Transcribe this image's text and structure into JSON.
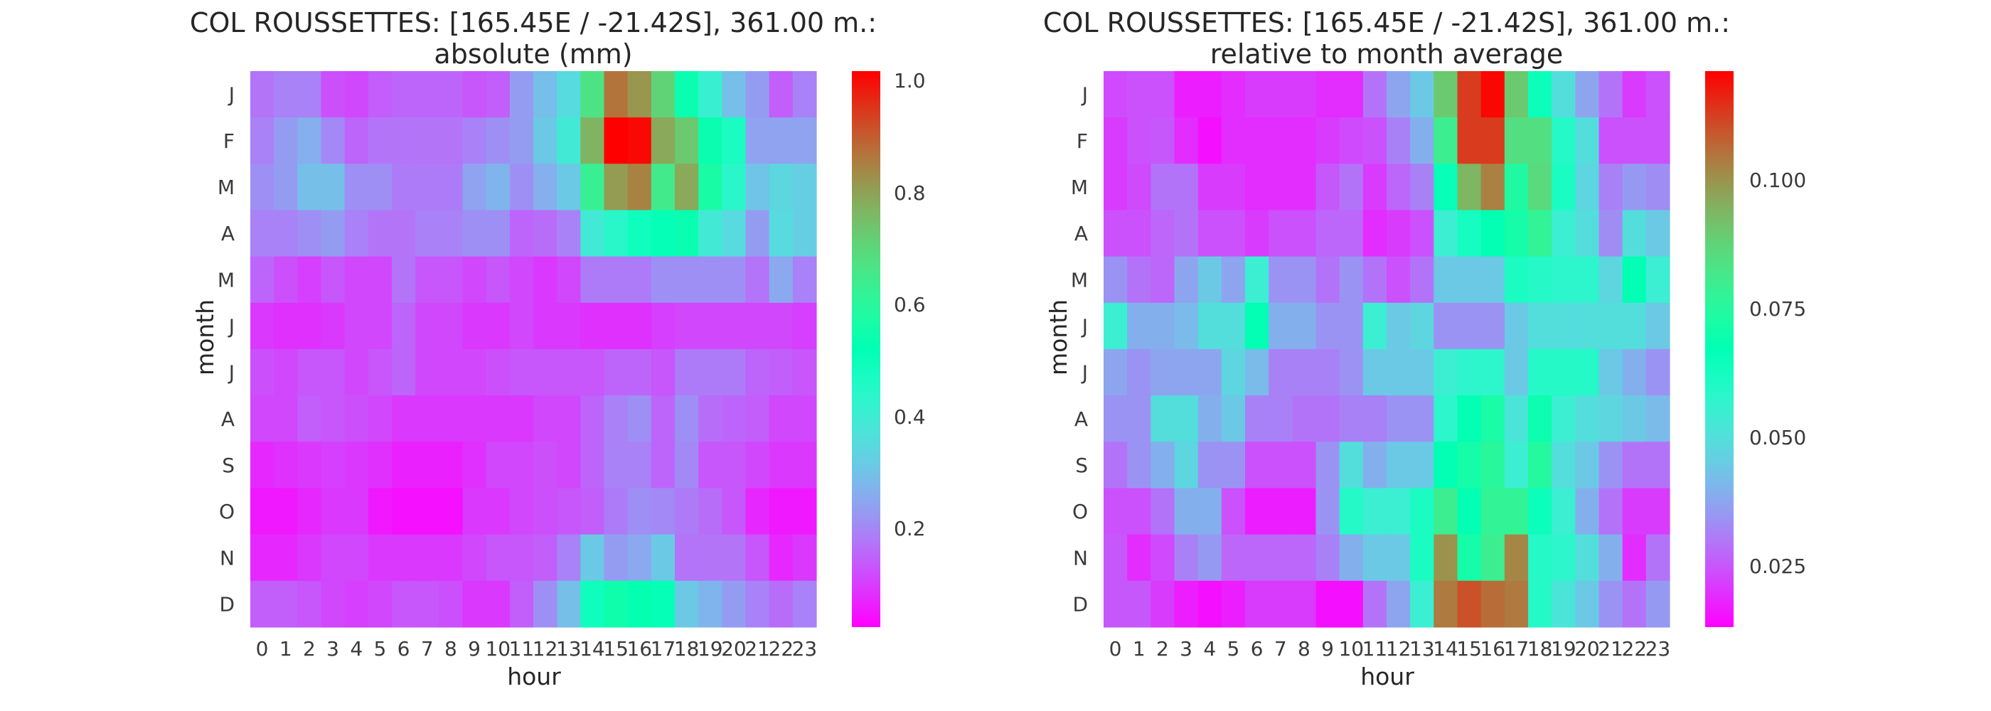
{
  "panels": [
    {
      "title_line1": "COL ROUSSETTES: [165.45E / -21.42S], 361.00 m.:",
      "title_line2": "absolute (mm)",
      "xlabel": "hour",
      "ylabel": "month",
      "colorbar_ticks": [
        "0.2",
        "0.4",
        "0.6",
        "0.8",
        "1.0"
      ]
    },
    {
      "title_line1": "COL ROUSSETTES: [165.45E / -21.42S], 361.00 m.:",
      "title_line2": "relative to month average",
      "xlabel": "hour",
      "ylabel": "month",
      "colorbar_ticks": [
        "0.025",
        "0.050",
        "0.075",
        "0.100"
      ]
    }
  ],
  "chart_data": [
    {
      "type": "heatmap",
      "title": "COL ROUSSETTES: [165.45E / -21.42S], 361.00 m.: absolute (mm)",
      "xlabel": "hour",
      "ylabel": "month",
      "x": [
        "0",
        "1",
        "2",
        "3",
        "4",
        "5",
        "6",
        "7",
        "8",
        "9",
        "10",
        "11",
        "12",
        "13",
        "14",
        "15",
        "16",
        "17",
        "18",
        "19",
        "20",
        "21",
        "22",
        "23"
      ],
      "y": [
        "J",
        "F",
        "M",
        "A",
        "M",
        "J",
        "J",
        "A",
        "S",
        "O",
        "N",
        "D"
      ],
      "colormap": "rainbow",
      "vmin": 0.03,
      "vmax": 1.03,
      "colorbar_ticks": [
        0.2,
        0.4,
        0.6,
        0.8,
        1.0
      ],
      "values": [
        [
          0.18,
          0.2,
          0.2,
          0.13,
          0.12,
          0.15,
          0.16,
          0.16,
          0.16,
          0.14,
          0.15,
          0.24,
          0.3,
          0.36,
          0.68,
          0.88,
          0.83,
          0.72,
          0.55,
          0.42,
          0.3,
          0.24,
          0.15,
          0.2
        ],
        [
          0.2,
          0.24,
          0.27,
          0.21,
          0.16,
          0.18,
          0.18,
          0.18,
          0.18,
          0.2,
          0.22,
          0.24,
          0.32,
          0.4,
          0.78,
          1.03,
          1.02,
          0.8,
          0.74,
          0.55,
          0.48,
          0.25,
          0.25,
          0.25
        ],
        [
          0.22,
          0.24,
          0.3,
          0.3,
          0.22,
          0.22,
          0.19,
          0.19,
          0.19,
          0.25,
          0.28,
          0.22,
          0.27,
          0.32,
          0.64,
          0.82,
          0.86,
          0.66,
          0.8,
          0.58,
          0.45,
          0.31,
          0.35,
          0.33
        ],
        [
          0.2,
          0.2,
          0.22,
          0.24,
          0.2,
          0.18,
          0.18,
          0.2,
          0.2,
          0.22,
          0.22,
          0.16,
          0.17,
          0.2,
          0.4,
          0.45,
          0.5,
          0.52,
          0.55,
          0.4,
          0.36,
          0.24,
          0.36,
          0.33
        ],
        [
          0.16,
          0.13,
          0.11,
          0.14,
          0.12,
          0.12,
          0.18,
          0.14,
          0.14,
          0.12,
          0.14,
          0.12,
          0.1,
          0.12,
          0.19,
          0.19,
          0.19,
          0.22,
          0.22,
          0.22,
          0.22,
          0.18,
          0.26,
          0.2
        ],
        [
          0.1,
          0.09,
          0.09,
          0.1,
          0.12,
          0.12,
          0.16,
          0.12,
          0.12,
          0.1,
          0.1,
          0.12,
          0.1,
          0.1,
          0.09,
          0.09,
          0.09,
          0.11,
          0.12,
          0.12,
          0.12,
          0.12,
          0.12,
          0.11
        ],
        [
          0.13,
          0.12,
          0.14,
          0.14,
          0.12,
          0.14,
          0.16,
          0.12,
          0.12,
          0.12,
          0.13,
          0.14,
          0.14,
          0.14,
          0.14,
          0.16,
          0.16,
          0.14,
          0.19,
          0.19,
          0.19,
          0.16,
          0.15,
          0.14
        ],
        [
          0.12,
          0.12,
          0.15,
          0.14,
          0.13,
          0.12,
          0.1,
          0.1,
          0.1,
          0.1,
          0.1,
          0.1,
          0.12,
          0.12,
          0.16,
          0.2,
          0.22,
          0.16,
          0.22,
          0.17,
          0.16,
          0.15,
          0.12,
          0.12
        ],
        [
          0.08,
          0.09,
          0.1,
          0.11,
          0.1,
          0.09,
          0.07,
          0.07,
          0.07,
          0.09,
          0.12,
          0.12,
          0.13,
          0.12,
          0.16,
          0.2,
          0.2,
          0.16,
          0.21,
          0.14,
          0.14,
          0.12,
          0.1,
          0.1
        ],
        [
          0.06,
          0.06,
          0.08,
          0.1,
          0.1,
          0.06,
          0.05,
          0.05,
          0.05,
          0.1,
          0.1,
          0.12,
          0.13,
          0.14,
          0.15,
          0.19,
          0.22,
          0.21,
          0.19,
          0.17,
          0.14,
          0.08,
          0.06,
          0.06
        ],
        [
          0.08,
          0.08,
          0.1,
          0.12,
          0.12,
          0.1,
          0.1,
          0.1,
          0.1,
          0.12,
          0.14,
          0.14,
          0.15,
          0.2,
          0.32,
          0.24,
          0.26,
          0.32,
          0.18,
          0.18,
          0.18,
          0.14,
          0.08,
          0.1
        ],
        [
          0.15,
          0.15,
          0.14,
          0.12,
          0.11,
          0.12,
          0.14,
          0.14,
          0.13,
          0.1,
          0.1,
          0.15,
          0.22,
          0.3,
          0.5,
          0.56,
          0.54,
          0.52,
          0.32,
          0.28,
          0.24,
          0.2,
          0.17,
          0.2
        ]
      ]
    },
    {
      "type": "heatmap",
      "title": "COL ROUSSETTES: [165.45E / -21.42S], 361.00 m.: relative to month average",
      "xlabel": "hour",
      "ylabel": "month",
      "x": [
        "0",
        "1",
        "2",
        "3",
        "4",
        "5",
        "6",
        "7",
        "8",
        "9",
        "10",
        "11",
        "12",
        "13",
        "14",
        "15",
        "16",
        "17",
        "18",
        "19",
        "20",
        "21",
        "22",
        "23"
      ],
      "y": [
        "J",
        "F",
        "M",
        "A",
        "M",
        "J",
        "J",
        "A",
        "S",
        "O",
        "N",
        "D"
      ],
      "colormap": "rainbow",
      "vmin": 0.014,
      "vmax": 0.121,
      "colorbar_ticks": [
        0.025,
        0.05,
        0.075,
        0.1
      ],
      "values": [
        [
          0.024,
          0.025,
          0.025,
          0.018,
          0.018,
          0.02,
          0.022,
          0.022,
          0.022,
          0.02,
          0.02,
          0.03,
          0.038,
          0.045,
          0.09,
          0.113,
          0.12,
          0.09,
          0.065,
          0.05,
          0.038,
          0.03,
          0.022,
          0.025
        ],
        [
          0.022,
          0.025,
          0.026,
          0.02,
          0.016,
          0.02,
          0.02,
          0.02,
          0.02,
          0.022,
          0.024,
          0.025,
          0.032,
          0.04,
          0.08,
          0.113,
          0.113,
          0.085,
          0.085,
          0.06,
          0.05,
          0.025,
          0.025,
          0.025
        ],
        [
          0.022,
          0.024,
          0.03,
          0.03,
          0.022,
          0.022,
          0.02,
          0.02,
          0.02,
          0.026,
          0.03,
          0.022,
          0.028,
          0.032,
          0.066,
          0.094,
          0.103,
          0.074,
          0.086,
          0.062,
          0.048,
          0.032,
          0.036,
          0.034
        ],
        [
          0.025,
          0.025,
          0.028,
          0.03,
          0.025,
          0.025,
          0.022,
          0.025,
          0.025,
          0.028,
          0.028,
          0.02,
          0.022,
          0.025,
          0.055,
          0.063,
          0.068,
          0.072,
          0.078,
          0.055,
          0.05,
          0.034,
          0.05,
          0.045
        ],
        [
          0.035,
          0.03,
          0.028,
          0.038,
          0.045,
          0.038,
          0.055,
          0.035,
          0.035,
          0.03,
          0.035,
          0.03,
          0.025,
          0.03,
          0.045,
          0.045,
          0.045,
          0.062,
          0.06,
          0.058,
          0.058,
          0.048,
          0.068,
          0.055
        ],
        [
          0.055,
          0.04,
          0.04,
          0.042,
          0.05,
          0.05,
          0.068,
          0.04,
          0.04,
          0.035,
          0.035,
          0.055,
          0.045,
          0.048,
          0.035,
          0.035,
          0.035,
          0.045,
          0.05,
          0.05,
          0.05,
          0.05,
          0.05,
          0.045
        ],
        [
          0.038,
          0.035,
          0.038,
          0.038,
          0.038,
          0.048,
          0.042,
          0.032,
          0.032,
          0.032,
          0.035,
          0.045,
          0.045,
          0.045,
          0.055,
          0.058,
          0.058,
          0.045,
          0.06,
          0.06,
          0.06,
          0.045,
          0.04,
          0.035
        ],
        [
          0.035,
          0.035,
          0.05,
          0.05,
          0.04,
          0.045,
          0.032,
          0.032,
          0.03,
          0.03,
          0.032,
          0.032,
          0.035,
          0.035,
          0.058,
          0.068,
          0.073,
          0.052,
          0.07,
          0.055,
          0.05,
          0.048,
          0.045,
          0.042
        ],
        [
          0.03,
          0.035,
          0.04,
          0.048,
          0.035,
          0.035,
          0.025,
          0.025,
          0.025,
          0.035,
          0.05,
          0.04,
          0.045,
          0.045,
          0.068,
          0.072,
          0.076,
          0.055,
          0.075,
          0.05,
          0.045,
          0.035,
          0.03,
          0.03
        ],
        [
          0.025,
          0.025,
          0.03,
          0.04,
          0.04,
          0.025,
          0.018,
          0.018,
          0.018,
          0.035,
          0.06,
          0.055,
          0.055,
          0.062,
          0.08,
          0.068,
          0.078,
          0.078,
          0.065,
          0.055,
          0.04,
          0.03,
          0.022,
          0.022
        ],
        [
          0.026,
          0.02,
          0.024,
          0.032,
          0.036,
          0.028,
          0.028,
          0.028,
          0.028,
          0.032,
          0.04,
          0.045,
          0.045,
          0.062,
          0.1,
          0.072,
          0.08,
          0.102,
          0.06,
          0.058,
          0.05,
          0.04,
          0.02,
          0.03
        ],
        [
          0.026,
          0.026,
          0.022,
          0.018,
          0.016,
          0.018,
          0.022,
          0.022,
          0.022,
          0.016,
          0.016,
          0.03,
          0.038,
          0.055,
          0.104,
          0.11,
          0.106,
          0.104,
          0.06,
          0.052,
          0.045,
          0.035,
          0.03,
          0.036
        ]
      ]
    }
  ]
}
